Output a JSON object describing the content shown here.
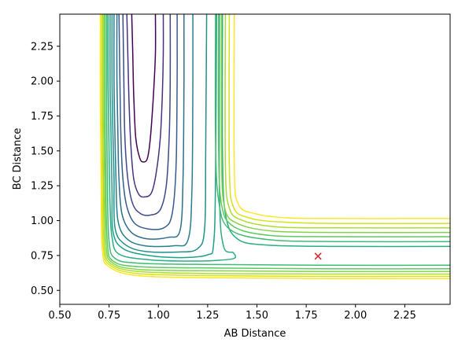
{
  "chart_data": {
    "type": "contour",
    "xlabel": "AB Distance",
    "ylabel": "BC Distance",
    "xlim": [
      0.5,
      2.48
    ],
    "ylim": [
      0.4,
      2.48
    ],
    "xticks": [
      "0.50",
      "0.75",
      "1.00",
      "1.25",
      "1.50",
      "1.75",
      "2.00",
      "2.25"
    ],
    "yticks": [
      "0.50",
      "0.75",
      "1.00",
      "1.25",
      "1.50",
      "1.75",
      "2.00",
      "2.25"
    ],
    "colormap": "viridis",
    "marker": {
      "x": 1.81,
      "y": 0.745,
      "symbol": "x",
      "color": "#d62728"
    },
    "grid": false,
    "contours": [
      {
        "color": "#440154",
        "points": [
          [
            0.865,
            2.48
          ],
          [
            0.87,
            2.2
          ],
          [
            0.875,
            1.9
          ],
          [
            0.885,
            1.6
          ],
          [
            0.905,
            1.45
          ],
          [
            0.925,
            1.42
          ],
          [
            0.945,
            1.45
          ],
          [
            0.96,
            1.6
          ],
          [
            0.975,
            1.9
          ],
          [
            0.985,
            2.2
          ],
          [
            0.985,
            2.48
          ]
        ]
      },
      {
        "color": "#46327e",
        "points": [
          [
            0.84,
            2.48
          ],
          [
            0.845,
            2.2
          ],
          [
            0.85,
            1.9
          ],
          [
            0.86,
            1.55
          ],
          [
            0.875,
            1.3
          ],
          [
            0.9,
            1.19
          ],
          [
            0.93,
            1.17
          ],
          [
            0.965,
            1.2
          ],
          [
            0.99,
            1.35
          ],
          [
            1.01,
            1.6
          ],
          [
            1.02,
            1.9
          ],
          [
            1.025,
            2.2
          ],
          [
            1.025,
            2.48
          ]
        ]
      },
      {
        "color": "#3f4788",
        "points": [
          [
            0.82,
            2.48
          ],
          [
            0.825,
            2.0
          ],
          [
            0.83,
            1.6
          ],
          [
            0.845,
            1.3
          ],
          [
            0.87,
            1.12
          ],
          [
            0.91,
            1.05
          ],
          [
            0.96,
            1.04
          ],
          [
            1.01,
            1.08
          ],
          [
            1.04,
            1.25
          ],
          [
            1.055,
            1.6
          ],
          [
            1.06,
            2.0
          ],
          [
            1.06,
            2.48
          ]
        ]
      },
      {
        "color": "#365c8d",
        "points": [
          [
            0.8,
            2.48
          ],
          [
            0.805,
            2.0
          ],
          [
            0.81,
            1.6
          ],
          [
            0.82,
            1.3
          ],
          [
            0.84,
            1.1
          ],
          [
            0.88,
            0.98
          ],
          [
            0.95,
            0.94
          ],
          [
            1.03,
            0.95
          ],
          [
            1.07,
            1.05
          ],
          [
            1.09,
            1.4
          ],
          [
            1.095,
            2.0
          ],
          [
            1.095,
            2.48
          ]
        ]
      },
      {
        "color": "#2e6e8e",
        "points": [
          [
            0.79,
            2.48
          ],
          [
            0.79,
            2.0
          ],
          [
            0.795,
            1.6
          ],
          [
            0.8,
            1.3
          ],
          [
            0.815,
            1.05
          ],
          [
            0.86,
            0.92
          ],
          [
            0.94,
            0.87
          ],
          [
            1.05,
            0.88
          ],
          [
            1.11,
            0.93
          ],
          [
            1.125,
            1.3
          ],
          [
            1.13,
            2.0
          ],
          [
            1.13,
            2.48
          ]
        ]
      },
      {
        "color": "#277f8e",
        "points": [
          [
            0.775,
            2.48
          ],
          [
            0.775,
            2.0
          ],
          [
            0.78,
            1.6
          ],
          [
            0.785,
            1.3
          ],
          [
            0.795,
            1.0
          ],
          [
            0.84,
            0.87
          ],
          [
            0.93,
            0.82
          ],
          [
            1.08,
            0.82
          ],
          [
            1.15,
            0.86
          ],
          [
            1.17,
            1.2
          ],
          [
            1.175,
            2.0
          ],
          [
            1.175,
            2.48
          ]
        ]
      },
      {
        "color": "#21918c",
        "points": [
          [
            0.765,
            2.48
          ],
          [
            0.765,
            2.0
          ],
          [
            0.77,
            1.6
          ],
          [
            0.775,
            1.3
          ],
          [
            0.78,
            0.95
          ],
          [
            0.83,
            0.83
          ],
          [
            0.93,
            0.78
          ],
          [
            1.1,
            0.775
          ],
          [
            1.2,
            0.8
          ],
          [
            1.235,
            0.95
          ],
          [
            1.24,
            1.5
          ],
          [
            1.245,
            2.48
          ]
        ]
      },
      {
        "color": "#1fa088",
        "points": [
          [
            0.755,
            2.48
          ],
          [
            0.755,
            2.0
          ],
          [
            0.76,
            1.6
          ],
          [
            0.765,
            1.2
          ],
          [
            0.77,
            0.92
          ],
          [
            0.82,
            0.8
          ],
          [
            0.95,
            0.75
          ],
          [
            1.12,
            0.735
          ],
          [
            1.25,
            0.755
          ],
          [
            1.28,
            0.83
          ],
          [
            1.29,
            1.3
          ],
          [
            1.295,
            2.48
          ]
        ]
      },
      {
        "color": "#28ae80",
        "points": [
          [
            0.745,
            2.48
          ],
          [
            0.745,
            2.0
          ],
          [
            0.75,
            1.5
          ],
          [
            0.755,
            1.1
          ],
          [
            0.765,
            0.88
          ],
          [
            0.8,
            0.76
          ],
          [
            0.95,
            0.72
          ],
          [
            1.15,
            0.71
          ],
          [
            1.3,
            0.715
          ],
          [
            1.385,
            0.73
          ],
          [
            1.38,
            0.77
          ],
          [
            1.33,
            0.82
          ],
          [
            1.31,
            1.2
          ],
          [
            1.31,
            2.48
          ]
        ]
      },
      {
        "color": "#3fbc73",
        "points": [
          [
            0.738,
            2.48
          ],
          [
            0.738,
            1.8
          ],
          [
            0.742,
            1.2
          ],
          [
            0.75,
            0.85
          ],
          [
            0.78,
            0.73
          ],
          [
            0.9,
            0.695
          ],
          [
            1.3,
            0.685
          ],
          [
            1.8,
            0.68
          ],
          [
            2.48,
            0.68
          ]
        ]
      },
      {
        "color": "#5ec962",
        "points": [
          [
            0.73,
            2.48
          ],
          [
            0.73,
            1.8
          ],
          [
            0.734,
            1.2
          ],
          [
            0.742,
            0.83
          ],
          [
            0.77,
            0.71
          ],
          [
            0.9,
            0.67
          ],
          [
            1.3,
            0.66
          ],
          [
            1.8,
            0.655
          ],
          [
            2.48,
            0.655
          ]
        ]
      },
      {
        "color": "#84d44b",
        "points": [
          [
            0.724,
            2.48
          ],
          [
            0.724,
            1.8
          ],
          [
            0.728,
            1.2
          ],
          [
            0.735,
            0.82
          ],
          [
            0.765,
            0.7
          ],
          [
            0.9,
            0.65
          ],
          [
            1.3,
            0.64
          ],
          [
            1.8,
            0.635
          ],
          [
            2.48,
            0.635
          ]
        ]
      },
      {
        "color": "#addc30",
        "points": [
          [
            0.718,
            2.48
          ],
          [
            0.718,
            1.8
          ],
          [
            0.722,
            1.2
          ],
          [
            0.728,
            0.81
          ],
          [
            0.76,
            0.69
          ],
          [
            0.9,
            0.635
          ],
          [
            1.3,
            0.62
          ],
          [
            1.8,
            0.617
          ],
          [
            2.48,
            0.617
          ]
        ]
      },
      {
        "color": "#d8e219",
        "points": [
          [
            0.712,
            2.48
          ],
          [
            0.712,
            1.8
          ],
          [
            0.716,
            1.2
          ],
          [
            0.722,
            0.8
          ],
          [
            0.755,
            0.68
          ],
          [
            0.9,
            0.62
          ],
          [
            1.3,
            0.605
          ],
          [
            1.8,
            0.6
          ],
          [
            2.48,
            0.6
          ]
        ]
      },
      {
        "color": "#fde725",
        "points": [
          [
            0.706,
            2.48
          ],
          [
            0.706,
            1.8
          ],
          [
            0.71,
            1.2
          ],
          [
            0.716,
            0.79
          ],
          [
            0.75,
            0.67
          ],
          [
            0.9,
            0.605
          ],
          [
            1.3,
            0.59
          ],
          [
            1.8,
            0.585
          ],
          [
            2.48,
            0.585
          ]
        ]
      },
      {
        "color": "#28ae80",
        "points": [
          [
            1.325,
            2.48
          ],
          [
            1.325,
            1.5
          ],
          [
            1.34,
            1.05
          ],
          [
            1.4,
            0.87
          ],
          [
            1.55,
            0.825
          ],
          [
            1.9,
            0.815
          ],
          [
            2.48,
            0.815
          ]
        ]
      },
      {
        "color": "#3fbc73",
        "points": [
          [
            1.29,
            2.48
          ],
          [
            1.29,
            1.6
          ],
          [
            1.305,
            1.15
          ],
          [
            1.36,
            0.94
          ],
          [
            1.55,
            0.865
          ],
          [
            1.9,
            0.85
          ],
          [
            2.48,
            0.85
          ]
        ]
      },
      {
        "color": "#5ec962",
        "points": [
          [
            1.305,
            2.48
          ],
          [
            1.305,
            1.55
          ],
          [
            1.32,
            1.12
          ],
          [
            1.38,
            0.96
          ],
          [
            1.56,
            0.895
          ],
          [
            1.9,
            0.885
          ],
          [
            2.48,
            0.885
          ]
        ]
      },
      {
        "color": "#84d44b",
        "points": [
          [
            1.32,
            2.48
          ],
          [
            1.32,
            1.5
          ],
          [
            1.335,
            1.1
          ],
          [
            1.4,
            0.98
          ],
          [
            1.58,
            0.925
          ],
          [
            1.9,
            0.915
          ],
          [
            2.48,
            0.915
          ]
        ]
      },
      {
        "color": "#addc30",
        "points": [
          [
            1.34,
            2.48
          ],
          [
            1.34,
            1.4
          ],
          [
            1.36,
            1.09
          ],
          [
            1.43,
            1.0
          ],
          [
            1.6,
            0.955
          ],
          [
            1.9,
            0.948
          ],
          [
            2.48,
            0.948
          ]
        ]
      },
      {
        "color": "#d8e219",
        "points": [
          [
            1.36,
            2.48
          ],
          [
            1.36,
            1.4
          ],
          [
            1.38,
            1.1
          ],
          [
            1.46,
            1.02
          ],
          [
            1.62,
            0.99
          ],
          [
            1.9,
            0.98
          ],
          [
            2.48,
            0.98
          ]
        ]
      },
      {
        "color": "#fde725",
        "points": [
          [
            1.385,
            2.48
          ],
          [
            1.385,
            1.4
          ],
          [
            1.405,
            1.12
          ],
          [
            1.49,
            1.05
          ],
          [
            1.65,
            1.02
          ],
          [
            1.9,
            1.015
          ],
          [
            2.48,
            1.015
          ]
        ]
      }
    ]
  }
}
